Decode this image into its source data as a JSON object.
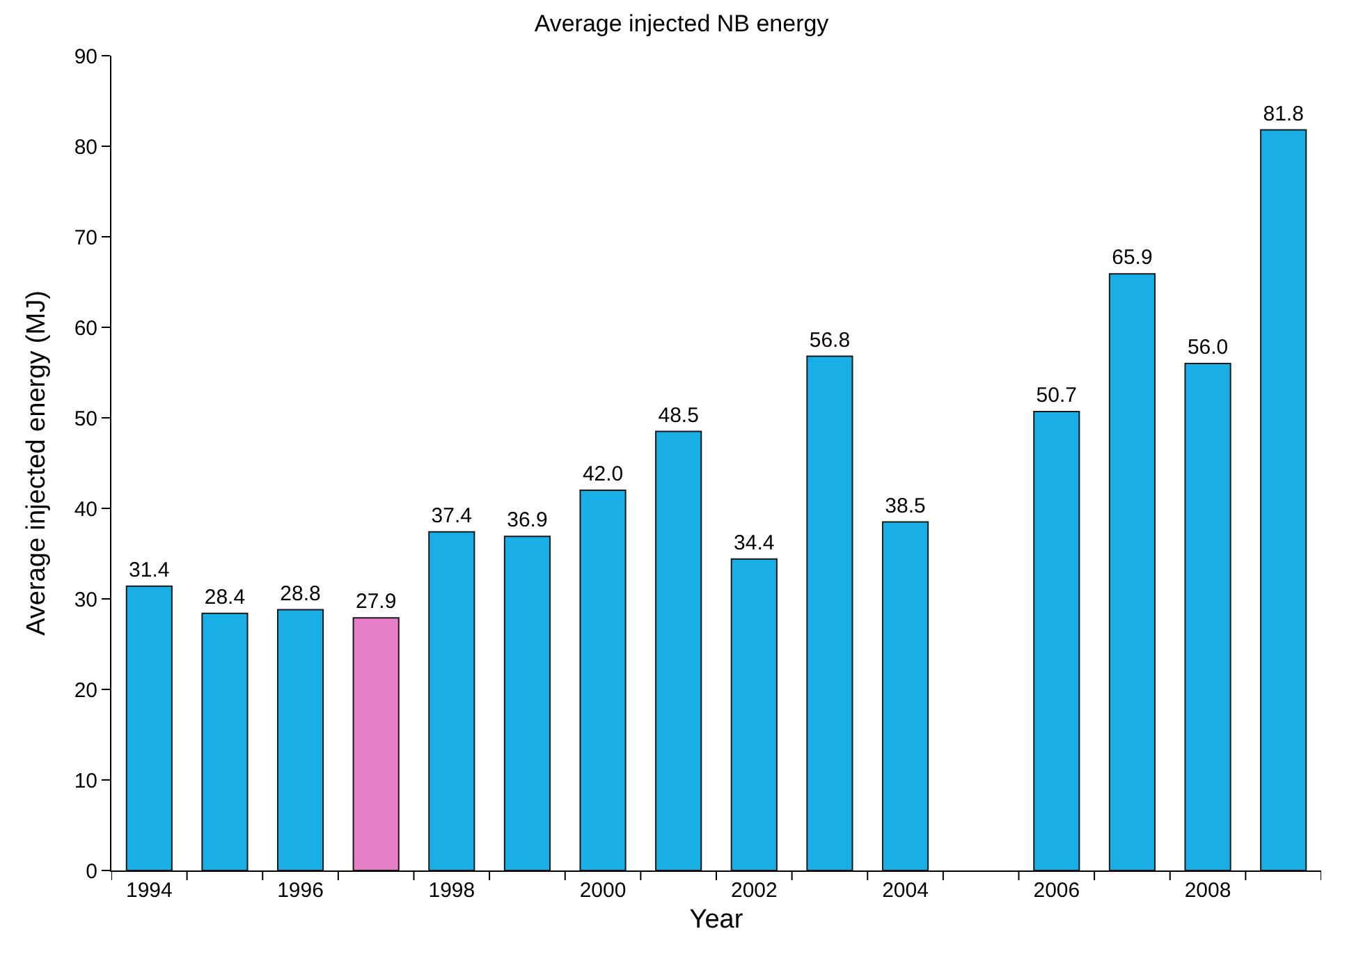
{
  "chart_data": {
    "type": "bar",
    "title": "Average injected NB energy",
    "xlabel": "Year",
    "ylabel": "Average injected energy (MJ)",
    "categories": [
      "1994",
      null,
      "1996",
      null,
      "1998",
      null,
      "2000",
      null,
      "2002",
      null,
      "2004",
      null,
      "2006",
      null,
      "2008",
      null
    ],
    "values": [
      31.4,
      28.4,
      28.8,
      27.9,
      37.4,
      36.9,
      42.0,
      48.5,
      34.4,
      56.8,
      38.5,
      null,
      50.7,
      65.9,
      56.0,
      81.8
    ],
    "value_labels": [
      "31.4",
      "28.4",
      "28.8",
      "27.9",
      "37.4",
      "36.9",
      "42.0",
      "48.5",
      "34.4",
      "56.8",
      "38.5",
      null,
      "50.7",
      "65.9",
      "56.0",
      "81.8"
    ],
    "colors": [
      "#1aaee6",
      "#1aaee6",
      "#1aaee6",
      "#e67fc8",
      "#1aaee6",
      "#1aaee6",
      "#1aaee6",
      "#1aaee6",
      "#1aaee6",
      "#1aaee6",
      "#1aaee6",
      "#1aaee6",
      "#1aaee6",
      "#1aaee6",
      "#1aaee6",
      "#1aaee6"
    ],
    "ylim": [
      0,
      90
    ],
    "yticks": [
      0,
      10,
      20,
      30,
      40,
      50,
      60,
      70,
      80,
      90
    ],
    "grid": false
  }
}
